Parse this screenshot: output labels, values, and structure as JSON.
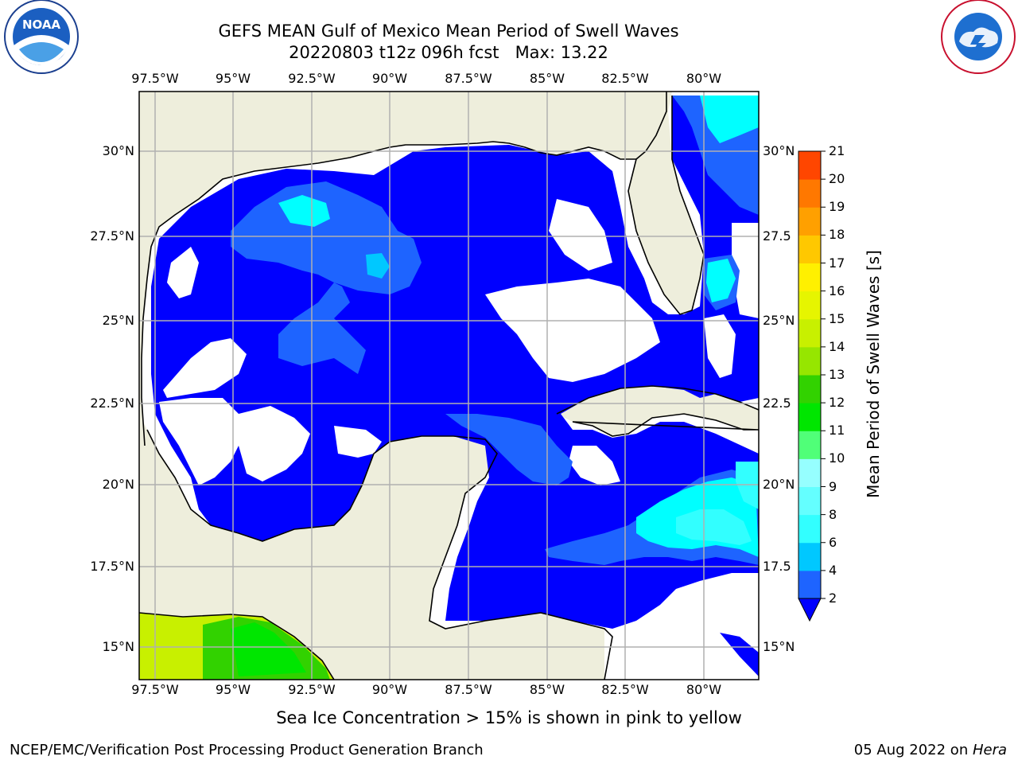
{
  "header": {
    "title_line1": "GEFS MEAN Gulf of Mexico Mean Period of Swell Waves",
    "title_line2": "20220803 t12z 096h fcst   Max: 13.22"
  },
  "logos": {
    "left": "NOAA",
    "right": "NATIONAL WEATHER SERVICE"
  },
  "map": {
    "lon_labels": [
      "97.5°W",
      "95°W",
      "92.5°W",
      "90°W",
      "87.5°W",
      "85°W",
      "82.5°W",
      "80°W"
    ],
    "lat_labels_left": [
      "30°N",
      "27.5°N",
      "25°N",
      "22.5°N",
      "20°N",
      "17.5°N",
      "15°N"
    ],
    "lat_labels_right": [
      "30°N",
      "27.5",
      "25°N",
      "22.5",
      "20°N",
      "17.5",
      "15°N"
    ],
    "extent": {
      "lon": [
        -98,
        -79
      ],
      "lat": [
        14,
        32
      ]
    }
  },
  "colorbar": {
    "title": "Mean Period of Swell Waves [s]",
    "ticks": [
      "2",
      "4",
      "6",
      "8",
      "9",
      "10",
      "11",
      "12",
      "13",
      "14",
      "15",
      "16",
      "17",
      "18",
      "19",
      "20",
      "21"
    ],
    "colors": [
      "#1e64ff",
      "#00c8ff",
      "#32ffff",
      "#64ffff",
      "#96ffff",
      "#50ff78",
      "#00e600",
      "#32d200",
      "#96e600",
      "#c8f000",
      "#e6f500",
      "#fff000",
      "#ffc800",
      "#ffa000",
      "#ff7800",
      "#ff4600",
      "#ff0000"
    ],
    "under_color": "#0000ff"
  },
  "footer": {
    "note": "Sea Ice Concentration > 15% is shown in pink to yellow",
    "credit": "NCEP/EMC/Verification Post Processing Product Generation Branch",
    "date_prefix": "05 Aug 2022 on ",
    "date_host": "Hera"
  }
}
